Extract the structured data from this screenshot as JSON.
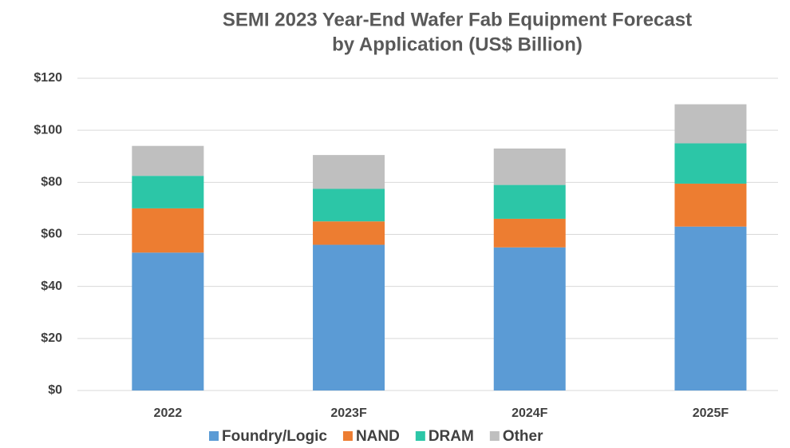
{
  "chart_data": {
    "type": "stacked_bar",
    "title": [
      "SEMI 2023 Year-End Wafer Fab Equipment Forecast",
      "by Application (US$ Billion)"
    ],
    "categories": [
      "2022",
      "2023F",
      "2024F",
      "2025F"
    ],
    "series": [
      {
        "name": "Foundry/Logic",
        "color": "#5b9bd5",
        "values": [
          53,
          56,
          55,
          63
        ]
      },
      {
        "name": "NAND",
        "color": "#ed7d31",
        "values": [
          17,
          9,
          11,
          16.5
        ]
      },
      {
        "name": "DRAM",
        "color": "#2cc6a7",
        "values": [
          12.5,
          12.5,
          13,
          15.5
        ]
      },
      {
        "name": "Other",
        "color": "#bfbfbf",
        "values": [
          11.5,
          13,
          14,
          15
        ]
      }
    ],
    "ylim": [
      0,
      120
    ],
    "yticks": [
      {
        "value": 0,
        "label": "$0"
      },
      {
        "value": 20,
        "label": "$20"
      },
      {
        "value": 40,
        "label": "$40"
      },
      {
        "value": 60,
        "label": "$60"
      },
      {
        "value": 80,
        "label": "$80"
      },
      {
        "value": 100,
        "label": "$100"
      },
      {
        "value": 120,
        "label": "$120"
      }
    ],
    "grid": true,
    "legend": "bottom"
  }
}
